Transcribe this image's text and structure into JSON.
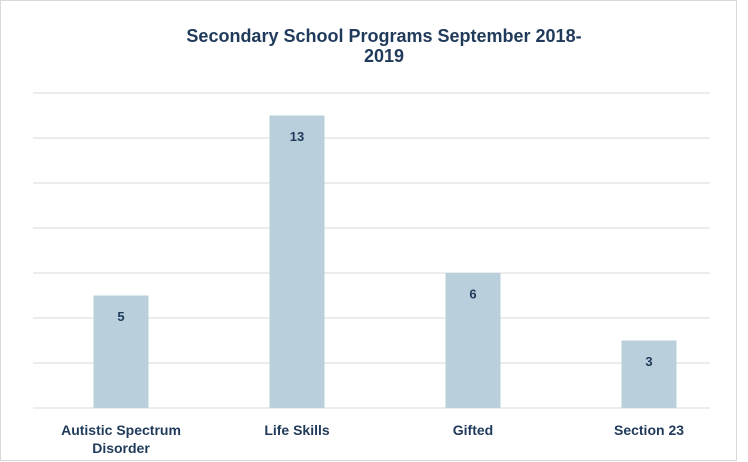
{
  "chart_data": {
    "type": "bar",
    "title": "Secondary School Programs September 2018-2019",
    "categories": [
      "Autistic Spectrum Disorder",
      "Life Skills",
      "Gifted",
      "Section 23"
    ],
    "values": [
      5,
      13,
      6,
      3
    ],
    "color": "#b9cfdc",
    "ylim": [
      0,
      14
    ],
    "yticks": [
      0,
      2,
      4,
      6,
      8,
      10,
      12,
      14
    ],
    "grid": true
  }
}
